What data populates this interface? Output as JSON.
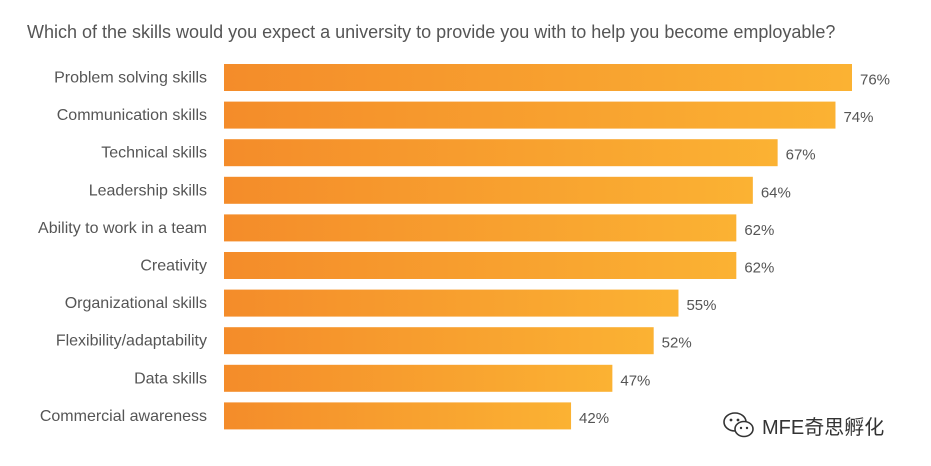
{
  "chart_data": {
    "type": "bar",
    "orientation": "horizontal",
    "title": "Which of the skills would you expect a university to provide you with to help you become employable?",
    "categories": [
      "Problem solving skills",
      "Communication skills",
      "Technical skills",
      "Leadership skills",
      "Ability to work in a team",
      "Creativity",
      "Organizational skills",
      "Flexibility/adaptability",
      "Data skills",
      "Commercial awareness"
    ],
    "values": [
      76,
      74,
      67,
      64,
      62,
      62,
      55,
      52,
      47,
      42
    ],
    "value_labels": [
      "76%",
      "74%",
      "67%",
      "64%",
      "62%",
      "62%",
      "55%",
      "52%",
      "47%",
      "42%"
    ],
    "xlim": [
      0,
      100
    ],
    "grid": false,
    "legend": "none",
    "bar_gradient": [
      "#f48c2a",
      "#fbb233"
    ]
  },
  "watermark": {
    "icon": "wechat-icon",
    "text": "MFE奇思孵化"
  }
}
